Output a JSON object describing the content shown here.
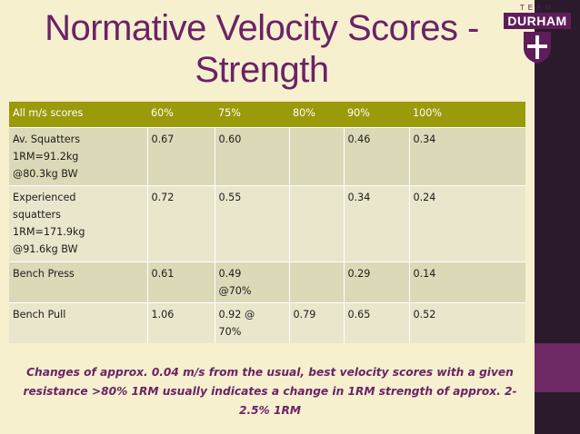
{
  "slide": {
    "title": "Normative Velocity Scores - Strength",
    "note": "Changes of approx. 0.04 m/s from the usual, best velocity scores with a given resistance >80% 1RM usually indicates a change in 1RM strength of approx. 2-2.5% 1RM",
    "colors": {
      "title": "#6a2365",
      "header_bg": "#9a9a0a",
      "row_bg": "#dcd9b8",
      "sidebar": "#2a1a2c",
      "sidebar_accent": "#6e2a64",
      "background": "#f6f0cf"
    }
  },
  "logo": {
    "team": "TEAM",
    "name": "DURHAM",
    "icon": "crest-icon"
  },
  "table": {
    "headers": [
      "All m/s scores",
      "60%",
      "75%",
      "80%",
      "90%",
      "100%"
    ],
    "rows": [
      [
        "Av. Squatters 1RM=91.2kg @80.3kg BW",
        "0.67",
        "0.60",
        "",
        "0.46",
        "0.34"
      ],
      [
        "Experienced squatters 1RM=171.9kg @91.6kg BW",
        "0.72",
        "0.55",
        "",
        "0.34",
        "0.24"
      ],
      [
        "Bench Press",
        "0.61",
        "0.49 @70%",
        "",
        "0.29",
        "0.14"
      ],
      [
        "Bench Pull",
        "1.06",
        "0.92 @ 70%",
        "0.79",
        "0.65",
        "0.52"
      ]
    ]
  }
}
